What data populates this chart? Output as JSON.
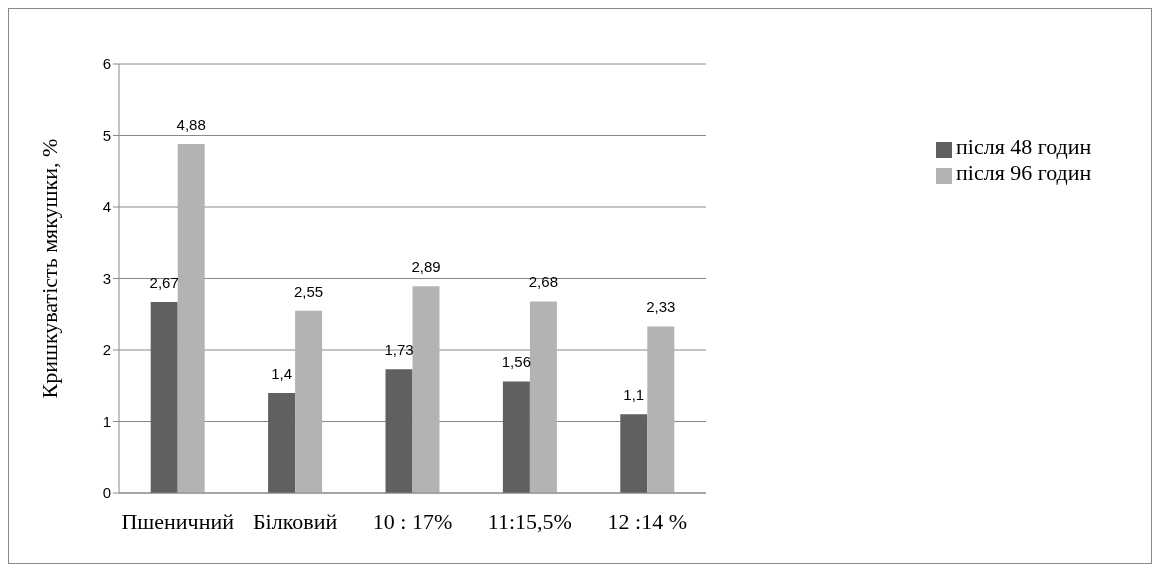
{
  "chart_data": {
    "type": "bar",
    "ylabel": "Кришкуватість мякушки, %",
    "categories": [
      "Пшеничний",
      "Білковий",
      "10 : 17%",
      "11:15,5%",
      "12 :14 %"
    ],
    "series": [
      {
        "name": "після 48 годин",
        "color": "#606060",
        "values": [
          2.67,
          1.4,
          1.73,
          1.56,
          1.1
        ],
        "value_labels": [
          "2,67",
          "1,4",
          "1,73",
          "1,56",
          "1,1"
        ]
      },
      {
        "name": "після 96 годин",
        "color": "#b3b3b3",
        "values": [
          4.88,
          2.55,
          2.89,
          2.68,
          2.33
        ],
        "value_labels": [
          "4,88",
          "2,55",
          "2,89",
          "2,68",
          "2,33"
        ]
      }
    ],
    "ylim": [
      0,
      6
    ],
    "yticks": [
      0,
      1,
      2,
      3,
      4,
      5,
      6
    ],
    "grid": "y",
    "legend": "right"
  }
}
